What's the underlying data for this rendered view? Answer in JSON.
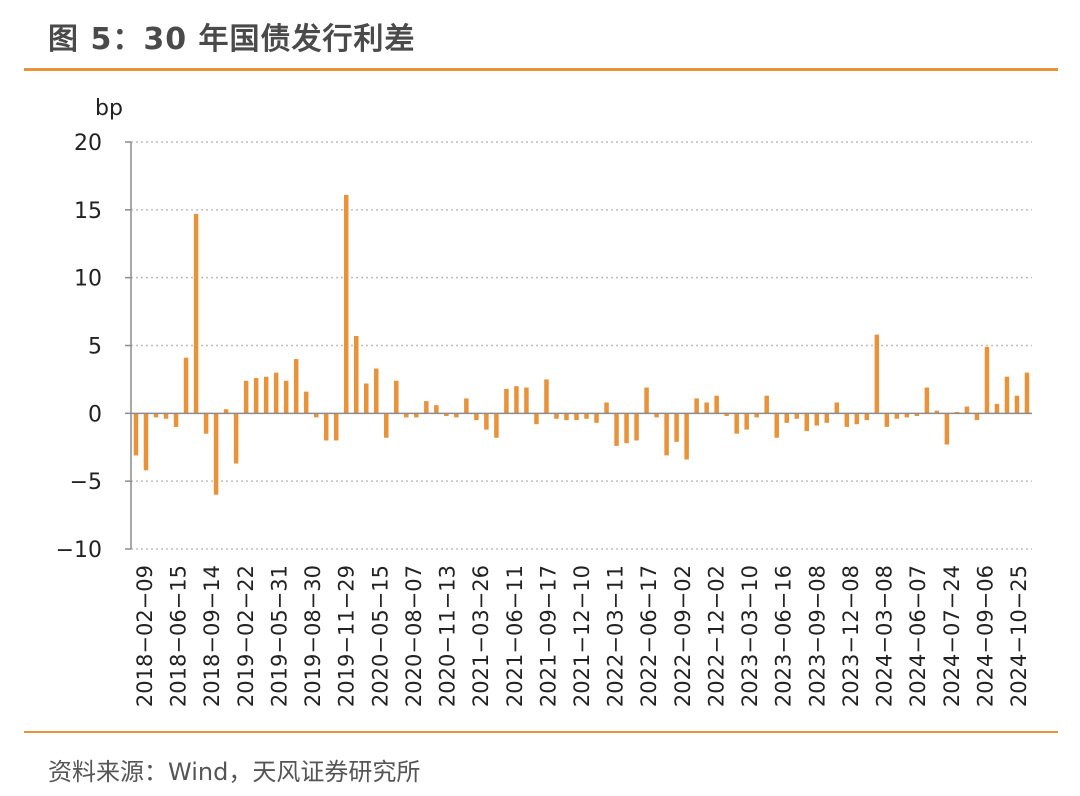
{
  "header": {
    "title": "图 5：30 年国债发行利差"
  },
  "footer": {
    "source": "资料来源：Wind，天风证券研究所"
  },
  "chart_data": {
    "type": "bar",
    "title": "图 5：30 年国债发行利差",
    "ylabel": "bp",
    "xlabel": "",
    "ylim": [
      -10,
      20
    ],
    "yticks": [
      -10,
      -5,
      0,
      5,
      10,
      15,
      20
    ],
    "ytick_labels": [
      "−10",
      "−5",
      "0",
      "5",
      "10",
      "15",
      "20"
    ],
    "grid": true,
    "legend": "none",
    "colors": {
      "bar": "#e8923a",
      "grid": "#bfbfbf",
      "axis": "#8c8c8c"
    },
    "xtick_labels": [
      "2018-02-09",
      "2018-06-15",
      "2018-09-14",
      "2019-02-22",
      "2019-05-31",
      "2019-08-30",
      "2019-11-29",
      "2020-05-15",
      "2020-08-07",
      "2020-11-13",
      "2021-03-26",
      "2021-06-11",
      "2021-09-17",
      "2021-12-10",
      "2022-03-11",
      "2022-06-17",
      "2022-09-02",
      "2022-12-02",
      "2023-03-10",
      "2023-06-16",
      "2023-09-08",
      "2023-12-08",
      "2024-03-08",
      "2024-06-07",
      "2024-07-24",
      "2024-09-06",
      "2024-10-25"
    ],
    "values": [
      -3.1,
      -4.2,
      -0.3,
      -0.4,
      -1.0,
      4.1,
      14.7,
      -1.5,
      -6.0,
      0.3,
      -3.7,
      2.4,
      2.6,
      2.7,
      3.0,
      2.4,
      4.0,
      1.6,
      -0.3,
      -2.0,
      -2.0,
      16.1,
      5.7,
      2.2,
      3.3,
      -1.8,
      2.4,
      -0.3,
      -0.3,
      0.9,
      0.6,
      -0.2,
      -0.3,
      1.1,
      -0.5,
      -1.2,
      -1.8,
      1.8,
      2.0,
      1.9,
      -0.8,
      2.5,
      -0.4,
      -0.5,
      -0.5,
      -0.4,
      -0.7,
      0.8,
      -2.4,
      -2.2,
      -2.0,
      1.9,
      -0.3,
      -3.1,
      -2.1,
      -3.4,
      1.1,
      0.8,
      1.3,
      -0.2,
      -1.5,
      -1.2,
      -0.3,
      1.3,
      -1.8,
      -0.7,
      -0.4,
      -1.3,
      -0.9,
      -0.7,
      0.8,
      -1.0,
      -0.8,
      -0.5,
      5.8,
      -1.0,
      -0.4,
      -0.3,
      -0.2,
      1.9,
      0.2,
      -2.3,
      0.1,
      0.5,
      -0.5,
      4.9,
      0.7,
      2.7,
      1.3,
      3.0
    ]
  }
}
